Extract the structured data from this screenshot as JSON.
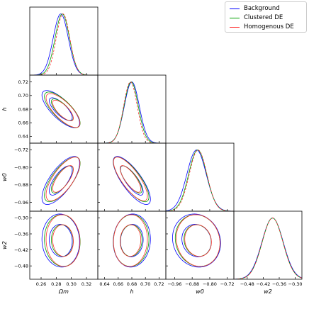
{
  "chart_data": {
    "type": "corner",
    "parameters": [
      {
        "key": "om",
        "label": "Ωm",
        "ticks": [
          0.26,
          0.28,
          0.3,
          0.32
        ],
        "tick_labels": [
          "0.26",
          "0.28",
          "0.30",
          "0.32"
        ],
        "range": [
          0.245,
          0.335
        ]
      },
      {
        "key": "h",
        "label": "h",
        "ticks": [
          0.64,
          0.66,
          0.68,
          0.7,
          0.72
        ],
        "tick_labels": [
          "0.64",
          "0.66",
          "0.68",
          "0.70",
          "0.72"
        ],
        "range": [
          0.63,
          0.73
        ]
      },
      {
        "key": "w0",
        "label": "w0",
        "ticks": [
          -0.96,
          -0.88,
          -0.8,
          -0.72
        ],
        "tick_labels": [
          "−0.96",
          "−0.88",
          "−0.80",
          "−0.72"
        ],
        "range": [
          -1.0,
          -0.69
        ]
      },
      {
        "key": "w2",
        "label": "w2",
        "ticks": [
          -0.48,
          -0.42,
          -0.36,
          -0.3
        ],
        "tick_labels": [
          "−0.48",
          "−0.42",
          "−0.36",
          "−0.30"
        ],
        "range": [
          -0.53,
          -0.275
        ]
      }
    ],
    "series": [
      {
        "name": "Background",
        "color": "#0000ff",
        "means": [
          0.286,
          0.68,
          -0.86,
          -0.385
        ],
        "sigmas": [
          0.01,
          0.011,
          0.044,
          0.04
        ]
      },
      {
        "name": "Clustered DE",
        "color": "#00a000",
        "means": [
          0.288,
          0.679,
          -0.855,
          -0.385
        ],
        "sigmas": [
          0.0095,
          0.0105,
          0.041,
          0.039
        ]
      },
      {
        "name": "Homogenous DE",
        "color": "#ff3030",
        "means": [
          0.289,
          0.678,
          -0.853,
          -0.385
        ],
        "sigmas": [
          0.009,
          0.01,
          0.04,
          0.039
        ]
      }
    ],
    "correlations": {
      "om_h": -0.75,
      "om_w0": 0.72,
      "h_w0": -0.78,
      "om_w2": -0.05,
      "h_w2": 0.05,
      "w0_w2": -0.1
    },
    "contour_levels": [
      "68%",
      "95%"
    ],
    "legend_position": "top-right"
  }
}
